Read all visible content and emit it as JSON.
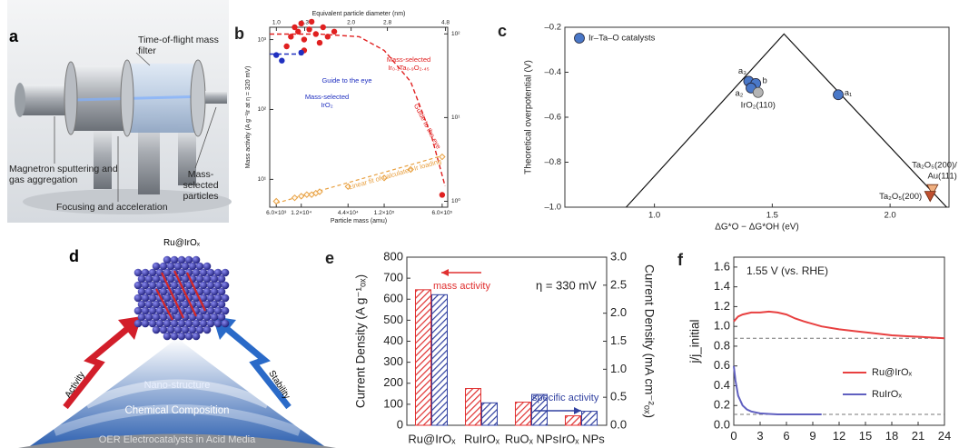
{
  "figure_a": {
    "label": "a",
    "filter": "Time-of-flight mass filter",
    "source": "Magnetron sputtering and gas aggregation",
    "focus": "Focusing and acceleration",
    "particles": "Mass-selected particles"
  },
  "figure_d": {
    "label": "d",
    "title": "Ru@IrOₓ",
    "left": "Activity",
    "right": "Stability",
    "layers": [
      "Nano-structure",
      "Chemical Composition",
      "OER Electrocatalysts in Acid Media"
    ]
  },
  "chart_data": [
    {
      "label": "b",
      "type": "scatter",
      "top_label": "Equivalent particle diameter (nm)",
      "x_label": "Particle mass (amu)",
      "y_label": "Mass activity (A g⁻¹Ir at η = 320 mV)",
      "xscale": "log",
      "x2scale": "log",
      "yscale": "log",
      "y2scale": "log",
      "xlim": [
        5000,
        700000
      ],
      "xticks": [
        {
          "value": 6000,
          "label": "6.0×10³"
        },
        {
          "value": 12000,
          "label": "1.2×10⁴"
        },
        {
          "value": 44000,
          "label": "4.4×10⁴"
        },
        {
          "value": 120000,
          "label": "1.2×10⁵"
        },
        {
          "value": 600000,
          "label": "6.0×10⁵"
        }
      ],
      "x2lim": [
        0.94,
        4.9
      ],
      "x2ticks": [
        {
          "value": 1,
          "label": "1.0"
        },
        1.3,
        {
          "value": 2,
          "label": "2.0"
        },
        2.8,
        4.8
      ],
      "ylim": [
        4,
        1500
      ],
      "yticks": [
        {
          "value": 10,
          "label": "10¹"
        },
        {
          "value": 100,
          "label": "10²"
        },
        {
          "value": 1000,
          "label": "10³"
        }
      ],
      "y2lim": [
        0.85,
        120
      ],
      "y2ticks": [
        {
          "value": 1,
          "label": "10⁰"
        },
        {
          "value": 10,
          "label": "10¹"
        },
        {
          "value": 100,
          "label": "10²"
        }
      ],
      "series": [
        {
          "name": "Mass-selected Ir₀.₁Ta₀.₉O₂.₄₅",
          "color": "#e02020",
          "x": [
            8000,
            9000,
            10000,
            11000,
            12000,
            13000,
            13000,
            15000,
            16000,
            18000,
            20000,
            22000,
            25000,
            30000,
            600000
          ],
          "values": [
            800,
            1100,
            1500,
            1300,
            1700,
            1000,
            700,
            1400,
            1800,
            1200,
            900,
            1500,
            1100,
            1300,
            6
          ],
          "guide_label": "Guide to the eye",
          "guide_x": [
            5000,
            20000,
            60000,
            120000,
            250000,
            450000,
            650000
          ],
          "guide_values": [
            1200,
            1200,
            1100,
            700,
            250,
            40,
            8
          ]
        },
        {
          "name": "Mass-selected IrO₂",
          "color": "#2030c0",
          "x": [
            6000,
            7000,
            12000
          ],
          "values": [
            600,
            500,
            650
          ],
          "guide_label": "Guide to the eye",
          "guide_x": [
            5000,
            12000
          ],
          "guide_values": [
            620,
            620
          ]
        },
        {
          "name": "Linear fit of calculated Ir loading",
          "color": "#e8a040",
          "axis": "y2",
          "marker": "diamond",
          "x": [
            6000,
            10000,
            12000,
            14000,
            16000,
            18000,
            20000,
            44000,
            120000,
            250000,
            600000
          ],
          "values": [
            1.0,
            1.1,
            1.15,
            1.2,
            1.2,
            1.25,
            1.3,
            1.5,
            1.9,
            2.4,
            3.4
          ],
          "fit_x": [
            6000,
            600000
          ],
          "fit_values": [
            0.95,
            3.5
          ]
        }
      ]
    },
    {
      "label": "c",
      "type": "scatter",
      "x_label": "ΔG*O − ΔG*OH (eV)",
      "y_label": "Theoretical overpotential (V)",
      "legend": "upper left",
      "xlim": [
        0.62,
        2.25
      ],
      "xticks": [
        {
          "value": 1,
          "label": "1.0"
        },
        1.5,
        {
          "value": 2,
          "label": "2.0"
        }
      ],
      "ylim": [
        -1,
        -0.2
      ],
      "yticks": [
        {
          "value": -1,
          "label": "–1.0"
        },
        {
          "value": -0.8,
          "label": "–0.8"
        },
        {
          "value": -0.6,
          "label": "–0.6"
        },
        {
          "value": -0.4,
          "label": "–0.4"
        },
        {
          "value": -0.2,
          "label": "–0.2"
        }
      ],
      "volcano": {
        "x": [
          0.88,
          1.55,
          2.24
        ],
        "values": [
          -1,
          -0.23,
          -1
        ]
      },
      "series": [
        {
          "name": "Ir–Ta–O catalysts",
          "color": "#4a78c8",
          "x": [
            1.4,
            1.43,
            1.41,
            1.78
          ],
          "values": [
            -0.44,
            -0.45,
            -0.47,
            -0.5
          ],
          "point_labels": [
            "a₃",
            "b",
            "a₂",
            "a₁"
          ]
        }
      ],
      "references": [
        {
          "name": "IrO₂(110)",
          "color": "#b4b4b4",
          "marker": "circle",
          "x": 1.44,
          "value": -0.49
        },
        {
          "name_lines": [
            "Ta₂O₅(200)/",
            "Au(111)"
          ],
          "color": "#f0b080",
          "marker": "triangle",
          "x": 2.18,
          "value": -0.92
        },
        {
          "name": "Ta₂O₅(200)",
          "color": "#c05030",
          "marker": "triangle",
          "x": 2.17,
          "value": -0.95
        }
      ]
    },
    {
      "label": "e",
      "type": "bar",
      "y_label": "Current Density (A g⁻¹ₒₓ)",
      "y2_label": "Current Density (mA cm⁻²ₒₓ)",
      "annotation": "η = 330 mV",
      "categories": [
        "Ru@IrOₓ",
        "RuIrOₓ",
        "RuOₓ NPs",
        "IrOₓ NPs"
      ],
      "ylim": [
        0,
        800
      ],
      "yticks": [
        0,
        100,
        200,
        300,
        400,
        500,
        600,
        700,
        800
      ],
      "y2lim": [
        0,
        3
      ],
      "y2ticks": [
        {
          "value": 0,
          "label": "0.0"
        },
        0.5,
        {
          "value": 1,
          "label": "1.0"
        },
        1.5,
        {
          "value": 2,
          "label": "2.0"
        },
        2.5,
        {
          "value": 3,
          "label": "3.0"
        }
      ],
      "series": [
        {
          "name": "mass activity",
          "color": "#e03030",
          "values": [
            645,
            175,
            110,
            45
          ]
        },
        {
          "name": "specific activity",
          "color": "#3040a0",
          "axis": "y2",
          "values": [
            2.33,
            0.4,
            0.55,
            0.25
          ]
        }
      ]
    },
    {
      "label": "f",
      "type": "line",
      "title": "1.55 V (vs. RHE)",
      "y_label": "j/j_initial",
      "legend": "lower right",
      "xlim": [
        0,
        24
      ],
      "xticks": [
        0,
        3,
        6,
        9,
        12,
        15,
        18,
        21,
        24
      ],
      "ylim": [
        0,
        1.7
      ],
      "yticks": [
        {
          "value": 0,
          "label": "0.0"
        },
        0.2,
        0.4,
        0.6,
        0.8,
        {
          "value": 1,
          "label": "1.0"
        },
        1.2,
        1.4,
        1.6
      ],
      "reference_lines": [
        0.88,
        0.11
      ],
      "series": [
        {
          "name": "Ru@IrOₓ",
          "color": "#e84040",
          "x": [
            0,
            0.5,
            1,
            2,
            3,
            4,
            5,
            6,
            7,
            8,
            10,
            12,
            14,
            16,
            18,
            20,
            22,
            24
          ],
          "values": [
            1.05,
            1.1,
            1.12,
            1.14,
            1.14,
            1.15,
            1.14,
            1.12,
            1.08,
            1.05,
            1.0,
            0.97,
            0.95,
            0.93,
            0.91,
            0.9,
            0.89,
            0.88
          ]
        },
        {
          "name": "RuIrOₓ",
          "color": "#6060c0",
          "x": [
            0,
            0.2,
            0.5,
            1,
            1.5,
            2,
            3,
            4,
            5,
            7,
            10
          ],
          "values": [
            0.6,
            0.45,
            0.3,
            0.2,
            0.16,
            0.14,
            0.12,
            0.115,
            0.11,
            0.11,
            0.11
          ]
        }
      ]
    }
  ]
}
